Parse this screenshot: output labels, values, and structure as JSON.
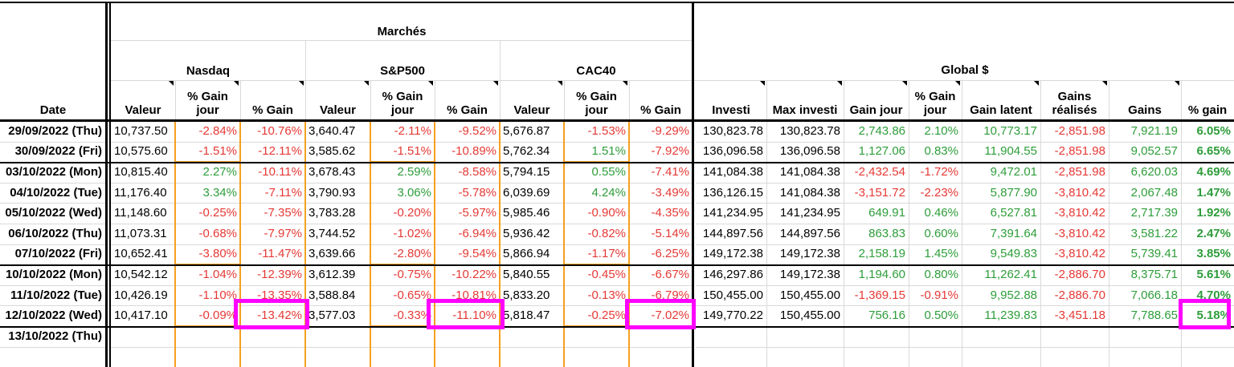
{
  "header": {
    "date": "Date",
    "marches": "Marchés",
    "global": "Global $",
    "nasdaq": "Nasdaq",
    "sp500": "S&P500",
    "cac40": "CAC40",
    "valeur": "Valeur",
    "gain_jour_pct": "% Gain jour",
    "gain_pct": "% Gain",
    "investi": "Investi",
    "max_investi": "Max investi",
    "gain_jour": "Gain jour",
    "gain_latent": "Gain latent",
    "gains_realises": "Gains réalisés",
    "gains": "Gains",
    "gain_pct_lower": "% gain"
  },
  "rows": [
    {
      "date": "29/09/2022 (Thu)",
      "v": [
        "10,737.50",
        "-2.84%",
        "-10.76%",
        "3,640.47",
        "-2.11%",
        "-9.52%",
        "5,676.87",
        "-1.53%",
        "-9.29%",
        "130,823.78",
        "130,823.78",
        "2,743.86",
        "2.10%",
        "10,773.17",
        "-2,851.98",
        "7,921.19",
        "6.05%"
      ]
    },
    {
      "date": "30/09/2022 (Fri)",
      "v": [
        "10,575.60",
        "-1.51%",
        "-12.11%",
        "3,585.62",
        "-1.51%",
        "-10.89%",
        "5,762.34",
        "1.51%",
        "-7.92%",
        "136,096.58",
        "136,096.58",
        "1,127.06",
        "0.83%",
        "11,904.55",
        "-2,851.98",
        "9,052.57",
        "6.65%"
      ]
    },
    {
      "date": "03/10/2022 (Mon)",
      "v": [
        "10,815.40",
        "2.27%",
        "-10.11%",
        "3,678.43",
        "2.59%",
        "-8.58%",
        "5,794.15",
        "0.55%",
        "-7.41%",
        "141,084.38",
        "141,084.38",
        "-2,432.54",
        "-1.72%",
        "9,472.01",
        "-2,851.98",
        "6,620.03",
        "4.69%"
      ]
    },
    {
      "date": "04/10/2022 (Tue)",
      "v": [
        "11,176.40",
        "3.34%",
        "-7.11%",
        "3,790.93",
        "3.06%",
        "-5.78%",
        "6,039.69",
        "4.24%",
        "-3.49%",
        "136,126.15",
        "141,084.38",
        "-3,151.72",
        "-2.23%",
        "5,877.90",
        "-3,810.42",
        "2,067.48",
        "1.47%"
      ]
    },
    {
      "date": "05/10/2022 (Wed)",
      "v": [
        "11,148.60",
        "-0.25%",
        "-7.35%",
        "3,783.28",
        "-0.20%",
        "-5.97%",
        "5,985.46",
        "-0.90%",
        "-4.35%",
        "141,234.95",
        "141,234.95",
        "649.91",
        "0.46%",
        "6,527.81",
        "-3,810.42",
        "2,717.39",
        "1.92%"
      ]
    },
    {
      "date": "06/10/2022 (Thu)",
      "v": [
        "11,073.31",
        "-0.68%",
        "-7.97%",
        "3,744.52",
        "-1.02%",
        "-6.94%",
        "5,936.42",
        "-0.82%",
        "-5.14%",
        "144,897.56",
        "144,897.56",
        "863.83",
        "0.60%",
        "7,391.64",
        "-3,810.42",
        "3,581.22",
        "2.47%"
      ]
    },
    {
      "date": "07/10/2022 (Fri)",
      "v": [
        "10,652.41",
        "-3.80%",
        "-11.47%",
        "3,639.66",
        "-2.80%",
        "-9.54%",
        "5,866.94",
        "-1.17%",
        "-6.25%",
        "149,172.38",
        "149,172.38",
        "2,158.19",
        "1.45%",
        "9,549.83",
        "-3,810.42",
        "5,739.41",
        "3.85%"
      ]
    },
    {
      "date": "10/10/2022 (Mon)",
      "v": [
        "10,542.12",
        "-1.04%",
        "-12.39%",
        "3,612.39",
        "-0.75%",
        "-10.22%",
        "5,840.55",
        "-0.45%",
        "-6.67%",
        "146,297.86",
        "149,172.38",
        "1,194.60",
        "0.80%",
        "11,262.41",
        "-2,886.70",
        "8,375.71",
        "5.61%"
      ]
    },
    {
      "date": "11/10/2022 (Tue)",
      "v": [
        "10,426.19",
        "-1.10%",
        "-13.35%",
        "3,588.84",
        "-0.65%",
        "-10.81%",
        "5,833.20",
        "-0.13%",
        "-6.79%",
        "150,455.00",
        "150,455.00",
        "-1,369.15",
        "-0.91%",
        "9,952.88",
        "-2,886.70",
        "7,066.18",
        "4.70%"
      ]
    },
    {
      "date": "12/10/2022 (Wed)",
      "v": [
        "10,417.10",
        "-0.09%",
        "-13.42%",
        "3,577.03",
        "-0.33%",
        "-11.10%",
        "5,818.47",
        "-0.25%",
        "-7.02%",
        "149,770.22",
        "150,455.00",
        "756.16",
        "0.50%",
        "11,239.83",
        "-3,451.18",
        "7,788.65",
        "5.18%"
      ]
    },
    {
      "date": "13/10/2022 (Thu)",
      "v": [
        "",
        "",
        "",
        "",
        "",
        "",
        "",
        "",
        "",
        "",
        "",
        "",
        "",
        "",
        "",
        "",
        ""
      ]
    }
  ],
  "colors": {
    "negative": "#e53935",
    "positive": "#2e9d3a",
    "highlight": "#ff00ff",
    "week_border": "#f5a020"
  }
}
